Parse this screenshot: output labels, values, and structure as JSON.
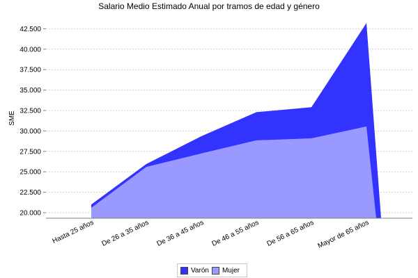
{
  "chart_data": {
    "type": "area",
    "title": "Salario Medio Estimado Anual por tramos de edad y género",
    "xlabel": "",
    "ylabel": "SME",
    "ylim": [
      19500,
      43500
    ],
    "grid": true,
    "legend_position": "bottom",
    "y_ticks": [
      "20.000",
      "22.500",
      "25.000",
      "27.500",
      "30.000",
      "32.500",
      "35.000",
      "37.500",
      "40.000",
      "42.500"
    ],
    "categories": [
      "Hasta 25  años",
      "De 26  a 35  años",
      "De 36  a 45  años",
      "De 46  a 55  años",
      "De 56  a 65  años",
      "Mayor de 65  años"
    ],
    "series": [
      {
        "name": "Varón",
        "color": "#3333ff",
        "values": [
          21000,
          25950,
          29350,
          32300,
          32900,
          43200
        ]
      },
      {
        "name": "Mujer",
        "color": "#9999ff",
        "values": [
          20600,
          25600,
          27250,
          28850,
          29100,
          30550
        ]
      }
    ]
  },
  "legend": {
    "items": [
      {
        "label": "Varón",
        "color": "#3333ff"
      },
      {
        "label": "Mujer",
        "color": "#9999ff"
      }
    ]
  }
}
